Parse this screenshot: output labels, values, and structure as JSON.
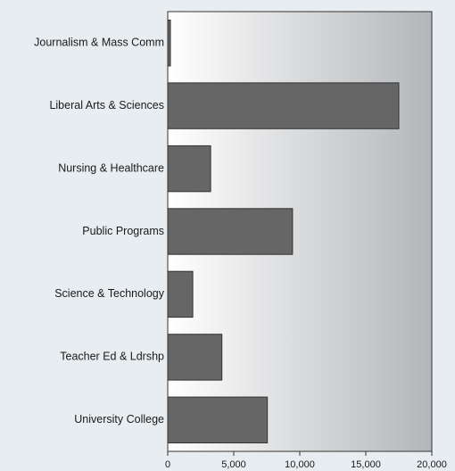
{
  "chart_data": {
    "type": "bar",
    "orientation": "horizontal",
    "categories": [
      "Journalism & Mass Comm",
      "Liberal Arts & Sciences",
      "Nursing  & Healthcare",
      "Public Programs",
      "Science & Technology",
      "Teacher Ed & Ldrshp",
      "University College"
    ],
    "values": [
      200,
      17500,
      3250,
      9450,
      1900,
      4100,
      7550
    ],
    "xlim": [
      0,
      20000
    ],
    "xticks": [
      0,
      5000,
      10000,
      15000,
      20000
    ],
    "xtick_labels": [
      "0",
      "5,000",
      "10,000",
      "15,000",
      "20,000"
    ],
    "title": "",
    "xlabel": "",
    "ylabel": "",
    "grid": false,
    "legend": "none",
    "colors": {
      "bar": "#666666",
      "bar_stroke": "#333333",
      "plot_gradient_left": "#ffffff",
      "plot_gradient_right": "#b3b6b9",
      "page_background": "#e8edf1",
      "plot_border": "#333333"
    }
  }
}
